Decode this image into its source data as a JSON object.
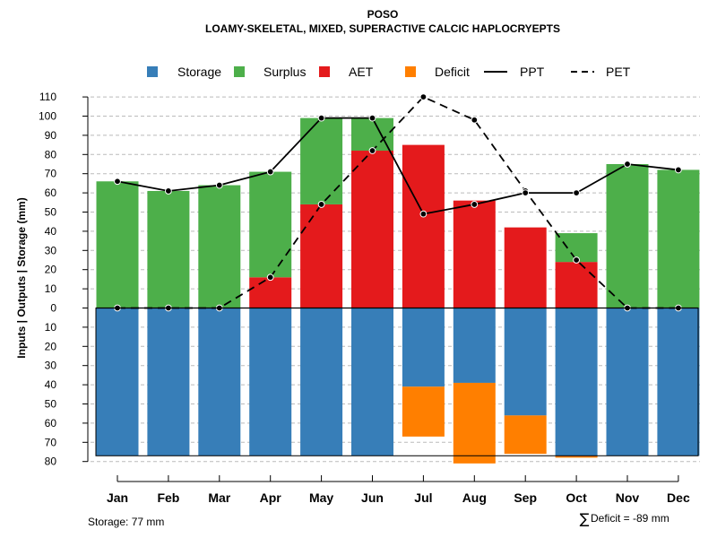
{
  "chart_data": {
    "type": "bar",
    "title": "POSO",
    "subtitle": "LOAMY-SKELETAL, MIXED, SUPERACTIVE CALCIC HAPLOCRYEPTS",
    "ylabel": "Inputs | Outputs | Storage    (mm)",
    "categories": [
      "Jan",
      "Feb",
      "Mar",
      "Apr",
      "May",
      "Jun",
      "Jul",
      "Aug",
      "Sep",
      "Oct",
      "Nov",
      "Dec"
    ],
    "y_ticks_positive": [
      0,
      10,
      20,
      30,
      40,
      50,
      60,
      70,
      80,
      90,
      100,
      110
    ],
    "y_ticks_negative": [
      10,
      20,
      30,
      40,
      50,
      60,
      70,
      80
    ],
    "ylim": [
      -80,
      110
    ],
    "grid": true,
    "legend_position": "top",
    "legend": [
      {
        "label": "Storage",
        "type": "square",
        "color": "#377EB8"
      },
      {
        "label": "Surplus",
        "type": "square",
        "color": "#4DAF4A"
      },
      {
        "label": "AET",
        "type": "square",
        "color": "#E41A1C"
      },
      {
        "label": "Deficit",
        "type": "square",
        "color": "#FF7F00"
      },
      {
        "label": "PPT",
        "type": "solid-line",
        "color": "#000000"
      },
      {
        "label": "PET",
        "type": "dashed-line",
        "color": "#000000"
      }
    ],
    "colors": {
      "storage": "#377EB8",
      "surplus": "#4DAF4A",
      "aet": "#E41A1C",
      "deficit": "#FF7F00"
    },
    "series": [
      {
        "name": "AET",
        "values": [
          0,
          0,
          0,
          16,
          54,
          82,
          85,
          56,
          42,
          24,
          0,
          0
        ]
      },
      {
        "name": "Surplus",
        "values": [
          66,
          61,
          64,
          55,
          45,
          17,
          0,
          0,
          0,
          15,
          75,
          72
        ]
      },
      {
        "name": "Storage",
        "values": [
          77,
          77,
          77,
          77,
          77,
          77,
          41,
          39,
          56,
          77,
          77,
          77
        ]
      },
      {
        "name": "Deficit",
        "values": [
          0,
          0,
          0,
          0,
          0,
          0,
          26,
          42,
          20,
          1,
          0,
          0
        ]
      },
      {
        "name": "PPT",
        "values": [
          66,
          61,
          64,
          71,
          99,
          99,
          49,
          54,
          60,
          60,
          75,
          72
        ]
      },
      {
        "name": "PET",
        "values": [
          0,
          0,
          0,
          16,
          54,
          82,
          110,
          98,
          61,
          25,
          0,
          0
        ]
      }
    ],
    "storage_capacity": 77
  },
  "footer": {
    "storage_label": "Storage: 77 mm",
    "deficit_symbol": "∑",
    "deficit_label": "Deficit = -89 mm"
  }
}
